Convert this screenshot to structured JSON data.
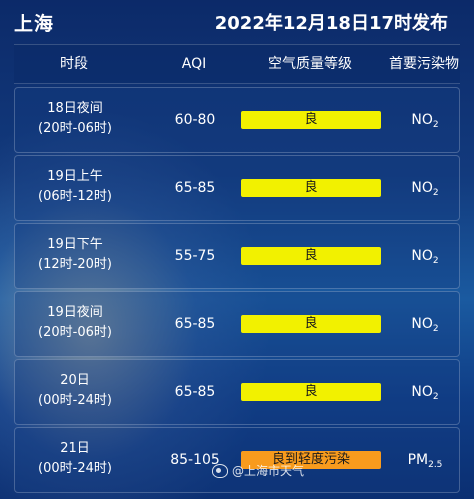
{
  "header": {
    "city": "上海",
    "publish_time": "2022年12月18日17时发布"
  },
  "columns": {
    "period": "时段",
    "aqi": "AQI",
    "level": "空气质量等级",
    "pollutant": "首要污染物"
  },
  "rows": [
    {
      "period_line1": "18日夜间",
      "period_line2": "(20时-06时)",
      "aqi": "60-80",
      "level": "良",
      "level_color": "#f2f100",
      "pollutant_main": "NO",
      "pollutant_sub": "2"
    },
    {
      "period_line1": "19日上午",
      "period_line2": "(06时-12时)",
      "aqi": "65-85",
      "level": "良",
      "level_color": "#f2f100",
      "pollutant_main": "NO",
      "pollutant_sub": "2"
    },
    {
      "period_line1": "19日下午",
      "period_line2": "(12时-20时)",
      "aqi": "55-75",
      "level": "良",
      "level_color": "#f2f100",
      "pollutant_main": "NO",
      "pollutant_sub": "2"
    },
    {
      "period_line1": "19日夜间",
      "period_line2": "(20时-06时)",
      "aqi": "65-85",
      "level": "良",
      "level_color": "#f2f100",
      "pollutant_main": "NO",
      "pollutant_sub": "2"
    },
    {
      "period_line1": "20日",
      "period_line2": "(00时-24时)",
      "aqi": "65-85",
      "level": "良",
      "level_color": "#f2f100",
      "pollutant_main": "NO",
      "pollutant_sub": "2"
    },
    {
      "period_line1": "21日",
      "period_line2": "(00时-24时)",
      "aqi": "85-105",
      "level": "良到轻度污染",
      "level_color": "#f89b1d",
      "pollutant_main": "PM",
      "pollutant_sub": "2.5"
    }
  ],
  "watermark": {
    "icon": "weibo-icon",
    "text": "@上海市天气"
  }
}
